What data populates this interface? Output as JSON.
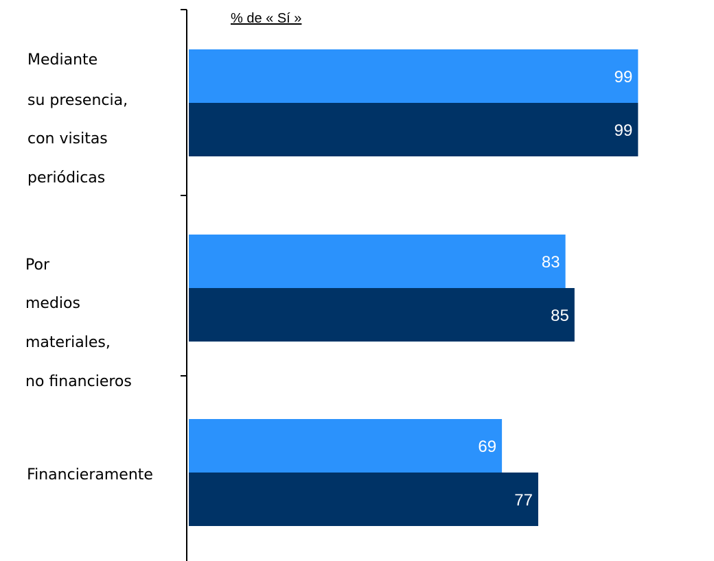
{
  "chart_data": {
    "type": "bar",
    "orientation": "horizontal",
    "header": "% de « Sí »",
    "title": "",
    "xlabel": "",
    "ylabel": "",
    "xlim": [
      0,
      100
    ],
    "grid": false,
    "categories": [
      [
        "Mediante",
        "su presencia,",
        "con visitas",
        "periódicas"
      ],
      [
        "Por",
        "medios",
        "materiales,",
        "no financieros"
      ],
      [
        "Financieramente"
      ]
    ],
    "series": [
      {
        "color": "#2b92fc",
        "values": [
          99,
          83,
          69
        ]
      },
      {
        "color": "#003366",
        "values": [
          99,
          85,
          77
        ]
      }
    ]
  }
}
